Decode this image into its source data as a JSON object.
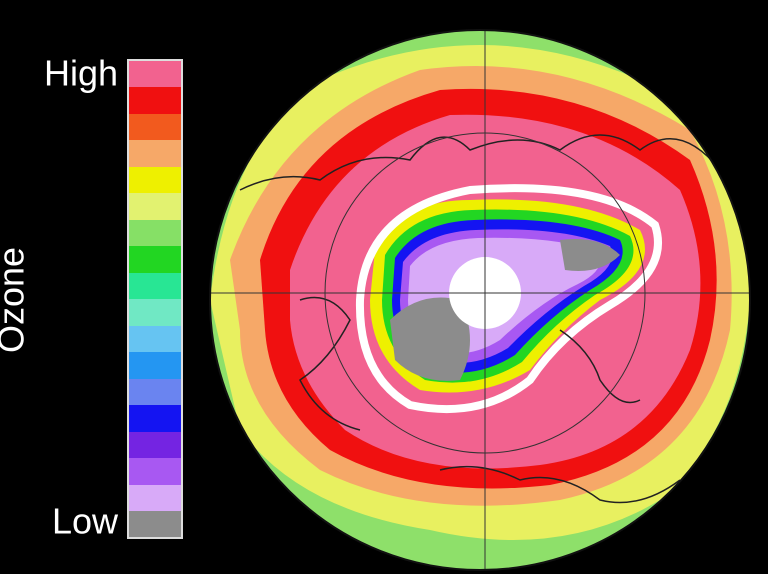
{
  "colorbar": {
    "title": "Ozone",
    "high_label": "High",
    "low_label": "Low"
  }
}
